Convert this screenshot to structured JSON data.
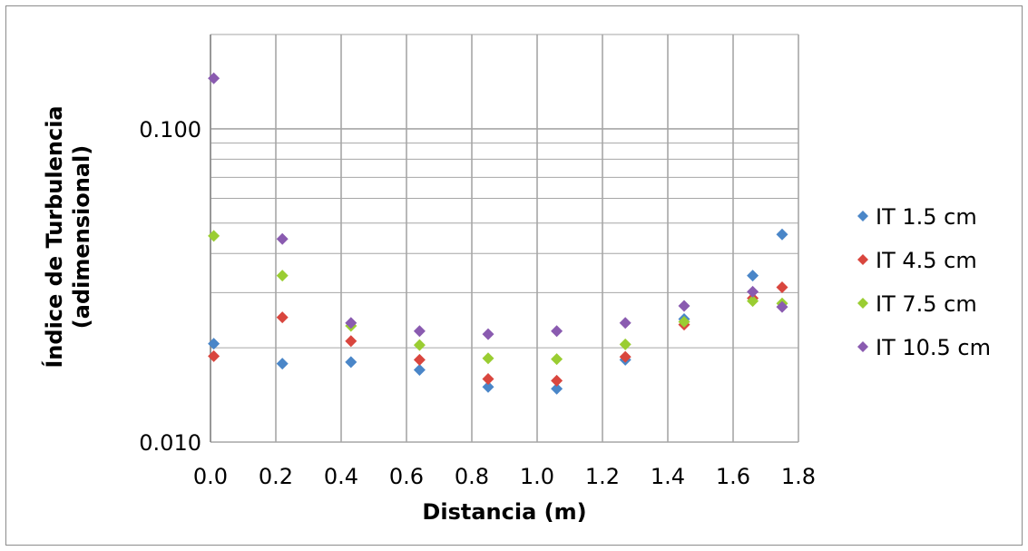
{
  "chart_data": {
    "type": "scatter",
    "title": "",
    "xlabel": "Distancia (m)",
    "ylabel_lines": [
      "Índice de Turbulencia",
      "(adimensional)"
    ],
    "xlim": [
      0,
      1.8
    ],
    "ylim": [
      0.01,
      0.2
    ],
    "y_scale": "log",
    "x_ticks": [
      "0.0",
      "0.2",
      "0.4",
      "0.6",
      "0.8",
      "1.0",
      "1.2",
      "1.4",
      "1.6",
      "1.8"
    ],
    "y_ticks": [
      "0.010",
      "0.100"
    ],
    "grid": true,
    "legend_position": "right",
    "series": [
      {
        "name": "IT 1.5 cm",
        "color": "#4a86c8",
        "x": [
          0.01,
          0.22,
          0.43,
          0.64,
          0.85,
          1.06,
          1.27,
          1.45,
          1.66,
          1.75
        ],
        "y": [
          0.0206,
          0.0178,
          0.018,
          0.017,
          0.015,
          0.0148,
          0.0183,
          0.0247,
          0.034,
          0.046
        ]
      },
      {
        "name": "IT 4.5 cm",
        "color": "#d9463e",
        "x": [
          0.01,
          0.22,
          0.43,
          0.64,
          0.85,
          1.06,
          1.27,
          1.45,
          1.66,
          1.75
        ],
        "y": [
          0.0188,
          0.025,
          0.021,
          0.0183,
          0.0159,
          0.0157,
          0.0187,
          0.0237,
          0.0288,
          0.0312
        ]
      },
      {
        "name": "IT 7.5 cm",
        "color": "#9acd32",
        "x": [
          0.01,
          0.22,
          0.43,
          0.64,
          0.85,
          1.06,
          1.27,
          1.45,
          1.66,
          1.75
        ],
        "y": [
          0.0455,
          0.034,
          0.0235,
          0.0204,
          0.0185,
          0.0184,
          0.0205,
          0.0242,
          0.0282,
          0.0277
        ]
      },
      {
        "name": "IT 10.5 cm",
        "color": "#8a5bb0",
        "x": [
          0.01,
          0.22,
          0.43,
          0.64,
          0.85,
          1.06,
          1.27,
          1.45,
          1.66,
          1.75
        ],
        "y": [
          0.145,
          0.0445,
          0.024,
          0.0226,
          0.0221,
          0.0226,
          0.024,
          0.0272,
          0.0302,
          0.027
        ]
      }
    ]
  }
}
